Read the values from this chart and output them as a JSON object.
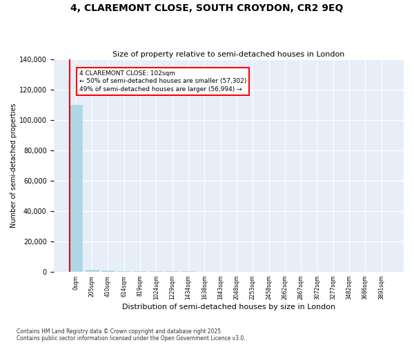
{
  "title": "4, CLAREMONT CLOSE, SOUTH CROYDON, CR2 9EQ",
  "subtitle": "Size of property relative to semi-detached houses in London",
  "xlabel": "Distribution of semi-detached houses by size in London",
  "ylabel": "Number of semi-detached properties",
  "property_label": "4 CLAREMONT CLOSE: 102sqm",
  "smaller_text": "← 50% of semi-detached houses are smaller (57,302)",
  "larger_text": "49% of semi-detached houses are larger (56,994) →",
  "footnote1": "Contains HM Land Registry data © Crown copyright and database right 2025.",
  "footnote2": "Contains public sector information licensed under the Open Government Licence v3.0.",
  "bar_color": "#add8e6",
  "bar_edge_color": "#add8e6",
  "line_color": "red",
  "annotation_box_edge": "red",
  "background_color": "#e8eef8",
  "ylim": [
    0,
    140000
  ],
  "yticks": [
    0,
    20000,
    40000,
    60000,
    80000,
    100000,
    120000,
    140000
  ],
  "bin_labels": [
    "0sqm",
    "205sqm",
    "410sqm",
    "614sqm",
    "819sqm",
    "1024sqm",
    "1229sqm",
    "1434sqm",
    "1638sqm",
    "1843sqm",
    "2048sqm",
    "2253sqm",
    "2458sqm",
    "2662sqm",
    "2867sqm",
    "3072sqm",
    "3277sqm",
    "3482sqm",
    "3686sqm",
    "3891sqm"
  ],
  "bar_heights": [
    110000,
    1200,
    800,
    600,
    400,
    350,
    300,
    250,
    200,
    180,
    160,
    150,
    130,
    120,
    110,
    100,
    90,
    80,
    70,
    60
  ],
  "property_line_x": -0.38
}
